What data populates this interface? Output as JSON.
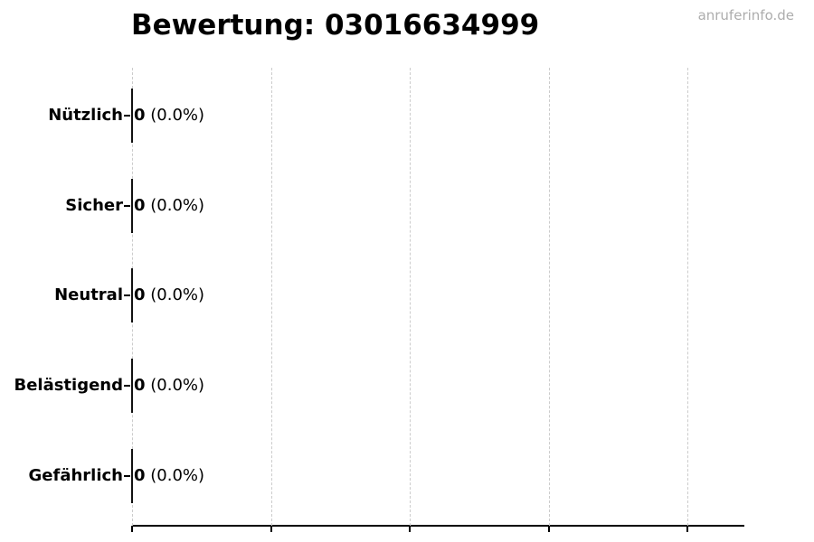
{
  "title": "Bewertung: 03016634999",
  "watermark": "anruferinfo.de",
  "colors": {
    "text": "#000000",
    "grid": "#cccccc",
    "axis": "#000000",
    "bar_edge": "#111111",
    "watermark": "#adadad"
  },
  "chart_data": {
    "type": "bar",
    "orientation": "horizontal",
    "title": "Bewertung: 03016634999",
    "xlabel": "",
    "ylabel": "",
    "categories": [
      "Nützlich",
      "Sicher",
      "Neutral",
      "Belästigend",
      "Gefährlich"
    ],
    "values": [
      0,
      0,
      0,
      0,
      0
    ],
    "percent_labels": [
      "(0.0%)",
      "(0.0%)",
      "(0.0%)",
      "(0.0%)",
      "(0.0%)"
    ],
    "value_label_format": "count (percent)",
    "x_tick_labels": [],
    "grid": true,
    "grid_style": "dashed-vertical",
    "legend": null
  }
}
